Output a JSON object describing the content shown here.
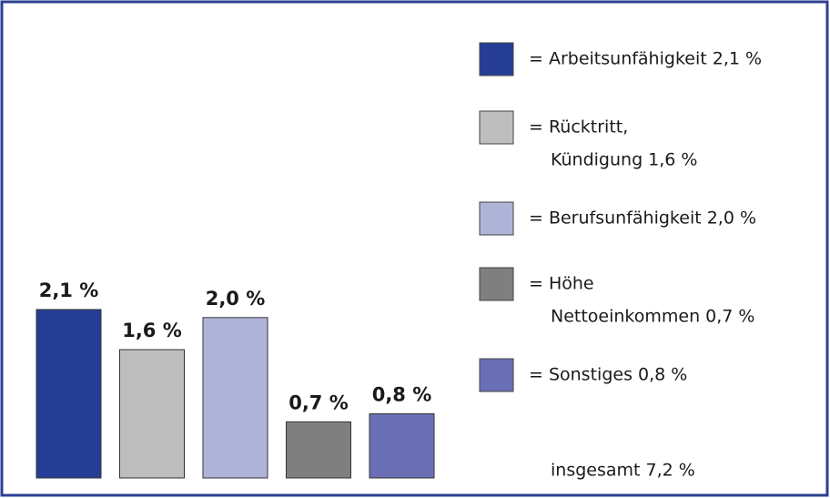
{
  "chart_data": {
    "type": "bar",
    "values": [
      2.1,
      1.6,
      2.0,
      0.7,
      0.8
    ],
    "value_labels": [
      "2,1 %",
      "1,6 %",
      "2,0 %",
      "0,7 %",
      "0,8 %"
    ],
    "colors": [
      "#263d96",
      "#bebebe",
      "#b0b3d8",
      "#7f7f7f",
      "#6a6fb5"
    ],
    "legend": [
      {
        "lines": [
          "= Arbeitsunfähigkeit 2,1 %"
        ]
      },
      {
        "lines": [
          "= Rücktritt,",
          "Kündigung 1,6 %"
        ]
      },
      {
        "lines": [
          "= Berufsunfähigkeit 2,0 %"
        ]
      },
      {
        "lines": [
          "= Höhe",
          "Nettoeinkommen 0,7 %"
        ]
      },
      {
        "lines": [
          "= Sonstiges 0,8 %"
        ]
      }
    ],
    "total": "insgesamt 7,2 %"
  }
}
